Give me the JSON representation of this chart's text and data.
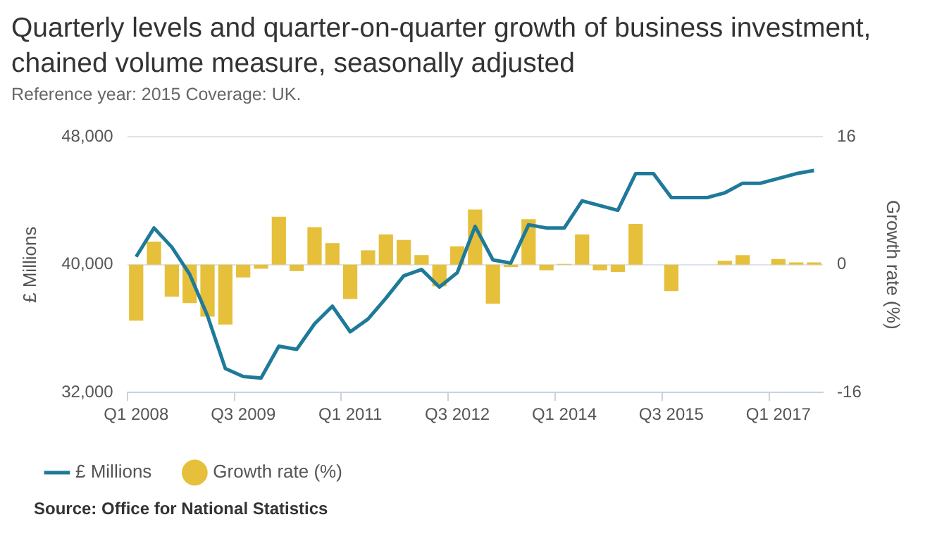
{
  "chart_data": {
    "type": "line",
    "title": "Quarterly levels and quarter-on-quarter growth of business investment, chained volume measure, seasonally adjusted",
    "subtitle": "Reference year: 2015 Coverage: UK.",
    "ylabel": "£ Millions",
    "y2label": "Growth rate (%)",
    "annotations": [
      "Source: Office for National Statistics"
    ],
    "categories": [
      "Q1 2008",
      null,
      null,
      null,
      null,
      null,
      "Q3 2009",
      null,
      null,
      null,
      null,
      null,
      "Q1 2011",
      null,
      null,
      null,
      null,
      null,
      "Q3 2012",
      null,
      null,
      null,
      null,
      null,
      "Q1 2014",
      null,
      null,
      null,
      null,
      null,
      "Q3 2015",
      null,
      null,
      null,
      null,
      null,
      "Q1 2017",
      null,
      null
    ],
    "series": [
      {
        "name": "£ Millions",
        "color": "#1f7a99",
        "values": [
          40500,
          42300,
          41100,
          39400,
          36800,
          33500,
          33000,
          32900,
          34900,
          34700,
          36300,
          37400,
          35800,
          36600,
          37900,
          39300,
          39700,
          38600,
          39500,
          42400,
          40300,
          40100,
          42500,
          42300,
          42300,
          44000,
          43700,
          43400,
          45700,
          45700,
          44200,
          44200,
          44200,
          44500,
          45100,
          45100,
          45400,
          45700,
          45900
        ]
      },
      {
        "name": "Growth rate (%)",
        "type": "bar",
        "axis": "y2",
        "color": "#e6c03a",
        "values": [
          -7.0,
          2.9,
          -4.0,
          -4.8,
          -6.5,
          -7.5,
          -1.6,
          -0.5,
          6.0,
          -0.8,
          4.7,
          2.7,
          -4.3,
          1.8,
          3.8,
          3.1,
          1.2,
          -2.7,
          2.3,
          6.9,
          -4.9,
          -0.3,
          5.7,
          -0.7,
          0.1,
          3.8,
          -0.7,
          -0.9,
          5.1,
          0,
          -3.3,
          0,
          0,
          0.5,
          1.2,
          0,
          0.7,
          0.3,
          0.3
        ]
      }
    ],
    "ylim": [
      32000,
      48000
    ],
    "yticks": [
      {
        "value": 32000,
        "label": "32,000"
      },
      {
        "value": 40000,
        "label": "40,000"
      },
      {
        "value": 48000,
        "label": "48,000"
      }
    ],
    "y2lim": [
      -16,
      16
    ],
    "y2ticks": [
      -16,
      0,
      16
    ],
    "grid": "y",
    "legend": "bottom"
  }
}
